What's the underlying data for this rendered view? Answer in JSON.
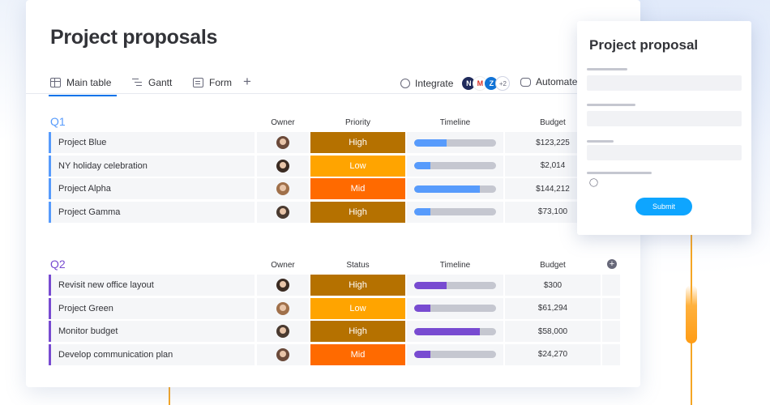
{
  "page": {
    "title": "Project proposals"
  },
  "tabs": [
    {
      "label": "Main table",
      "icon": "table-icon"
    },
    {
      "label": "Gantt",
      "icon": "gantt-icon"
    },
    {
      "label": "Form",
      "icon": "form-icon"
    }
  ],
  "add_tab_label": "+",
  "integrate": {
    "label": "Integrate",
    "apps": [
      "N",
      "M",
      "Z"
    ],
    "more": "+2"
  },
  "automate": {
    "label": "Automate"
  },
  "groups": [
    {
      "title": "Q1",
      "color": "#579bfc",
      "columns": {
        "owner": "Owner",
        "priority": "Priority",
        "timeline": "Timeline",
        "budget": "Budget"
      },
      "rows": [
        {
          "name": "Project Blue",
          "priority": "High",
          "timeline_progress": 0.4,
          "budget": "$123,225"
        },
        {
          "name": "NY holiday celebration",
          "priority": "Low",
          "timeline_progress": 0.2,
          "budget": "$2,014"
        },
        {
          "name": "Project Alpha",
          "priority": "Mid",
          "timeline_progress": 0.8,
          "budget": "$144,212"
        },
        {
          "name": "Project Gamma",
          "priority": "High",
          "timeline_progress": 0.2,
          "budget": "$73,100"
        }
      ]
    },
    {
      "title": "Q2",
      "color": "#784bd1",
      "columns": {
        "owner": "Owner",
        "priority": "Status",
        "timeline": "Timeline",
        "budget": "Budget"
      },
      "rows": [
        {
          "name": "Revisit new office layout",
          "priority": "High",
          "timeline_progress": 0.4,
          "budget": "$300"
        },
        {
          "name": "Project Green",
          "priority": "Low",
          "timeline_progress": 0.2,
          "budget": "$61,294"
        },
        {
          "name": "Monitor budget",
          "priority": "High",
          "timeline_progress": 0.8,
          "budget": "$58,000"
        },
        {
          "name": "Develop communication plan",
          "priority": "Mid",
          "timeline_progress": 0.2,
          "budget": "$24,270"
        }
      ]
    }
  ],
  "priority_colors": {
    "High": "#b57100",
    "Low": "#ffa400",
    "Mid": "#ff6a00"
  },
  "form": {
    "title": "Project proposal",
    "submit_label": "Submit"
  }
}
